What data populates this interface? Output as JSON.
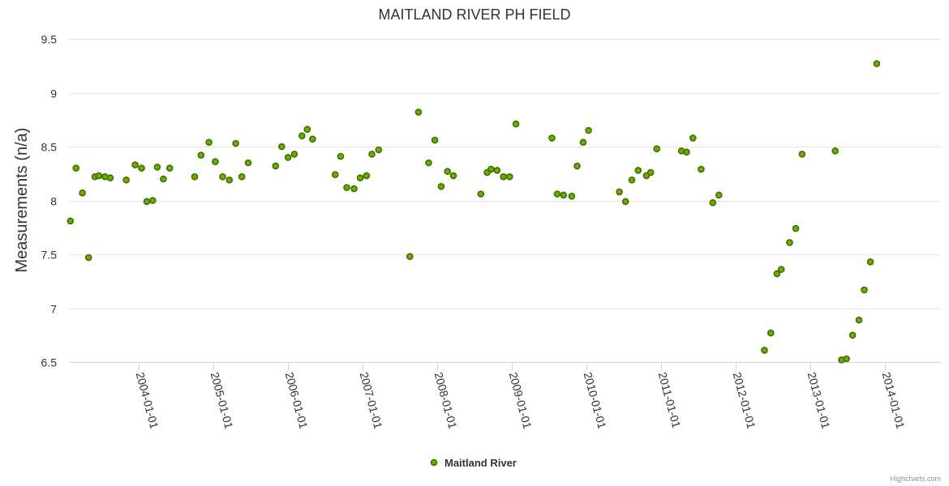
{
  "chart_data": {
    "type": "scatter",
    "title": "MAITLAND RIVER PH FIELD",
    "ylabel": "Measurements (n/a)",
    "xlabel": "",
    "ylim": [
      6.5,
      9.5
    ],
    "yticks": [
      "6.5",
      "7",
      "7.5",
      "8",
      "8.5",
      "9",
      "9.5"
    ],
    "xlim": [
      "2003-01-25",
      "2014-09-30"
    ],
    "xticks": [
      "2004-01-01",
      "2005-01-01",
      "2006-01-01",
      "2007-01-01",
      "2008-01-01",
      "2009-01-01",
      "2010-01-01",
      "2011-01-01",
      "2012-01-01",
      "2013-01-01",
      "2014-01-01"
    ],
    "legend": {
      "position": "bottom-center"
    },
    "credits": "Highcharts.com",
    "series": [
      {
        "name": "Maitland River",
        "color": "#6fae00",
        "points": [
          [
            "2003-02-01",
            7.81
          ],
          [
            "2003-03-01",
            8.3
          ],
          [
            "2003-04-01",
            8.07
          ],
          [
            "2003-05-01",
            7.47
          ],
          [
            "2003-06-01",
            8.22
          ],
          [
            "2003-06-20",
            8.23
          ],
          [
            "2003-07-20",
            8.22
          ],
          [
            "2003-08-15",
            8.21
          ],
          [
            "2003-11-01",
            8.19
          ],
          [
            "2003-12-15",
            8.33
          ],
          [
            "2004-01-15",
            8.3
          ],
          [
            "2004-02-10",
            7.99
          ],
          [
            "2004-03-10",
            8.0
          ],
          [
            "2004-04-01",
            8.31
          ],
          [
            "2004-05-01",
            8.2
          ],
          [
            "2004-06-01",
            8.3
          ],
          [
            "2004-10-01",
            8.22
          ],
          [
            "2004-11-01",
            8.42
          ],
          [
            "2004-12-10",
            8.54
          ],
          [
            "2005-01-10",
            8.36
          ],
          [
            "2005-02-15",
            8.22
          ],
          [
            "2005-03-20",
            8.19
          ],
          [
            "2005-04-20",
            8.53
          ],
          [
            "2005-05-20",
            8.22
          ],
          [
            "2005-06-20",
            8.35
          ],
          [
            "2005-11-01",
            8.32
          ],
          [
            "2005-12-01",
            8.5
          ],
          [
            "2006-01-01",
            8.4
          ],
          [
            "2006-02-01",
            8.43
          ],
          [
            "2006-03-10",
            8.6
          ],
          [
            "2006-04-05",
            8.66
          ],
          [
            "2006-05-01",
            8.57
          ],
          [
            "2006-08-20",
            8.24
          ],
          [
            "2006-09-15",
            8.41
          ],
          [
            "2006-10-15",
            8.12
          ],
          [
            "2006-11-20",
            8.11
          ],
          [
            "2006-12-20",
            8.21
          ],
          [
            "2007-01-20",
            8.23
          ],
          [
            "2007-02-15",
            8.43
          ],
          [
            "2007-03-20",
            8.47
          ],
          [
            "2007-08-20",
            7.48
          ],
          [
            "2007-10-01",
            8.82
          ],
          [
            "2007-11-20",
            8.35
          ],
          [
            "2007-12-20",
            8.56
          ],
          [
            "2008-01-20",
            8.13
          ],
          [
            "2008-02-20",
            8.27
          ],
          [
            "2008-03-20",
            8.23
          ],
          [
            "2008-08-01",
            8.06
          ],
          [
            "2008-09-01",
            8.26
          ],
          [
            "2008-09-20",
            8.29
          ],
          [
            "2008-10-20",
            8.28
          ],
          [
            "2008-11-20",
            8.22
          ],
          [
            "2008-12-20",
            8.22
          ],
          [
            "2009-01-20",
            8.71
          ],
          [
            "2009-07-15",
            8.58
          ],
          [
            "2009-08-10",
            8.06
          ],
          [
            "2009-09-10",
            8.05
          ],
          [
            "2009-10-20",
            8.04
          ],
          [
            "2009-11-15",
            8.32
          ],
          [
            "2009-12-15",
            8.54
          ],
          [
            "2010-01-10",
            8.65
          ],
          [
            "2010-06-10",
            8.08
          ],
          [
            "2010-07-10",
            7.99
          ],
          [
            "2010-08-10",
            8.19
          ],
          [
            "2010-09-10",
            8.28
          ],
          [
            "2010-10-20",
            8.23
          ],
          [
            "2010-11-10",
            8.26
          ],
          [
            "2010-12-10",
            8.48
          ],
          [
            "2011-04-10",
            8.46
          ],
          [
            "2011-05-05",
            8.45
          ],
          [
            "2011-06-05",
            8.58
          ],
          [
            "2011-07-15",
            8.29
          ],
          [
            "2011-09-10",
            7.98
          ],
          [
            "2011-10-10",
            8.05
          ],
          [
            "2012-05-20",
            6.61
          ],
          [
            "2012-06-20",
            6.77
          ],
          [
            "2012-07-20",
            7.32
          ],
          [
            "2012-08-10",
            7.36
          ],
          [
            "2012-09-20",
            7.61
          ],
          [
            "2012-10-20",
            7.74
          ],
          [
            "2012-11-20",
            8.43
          ],
          [
            "2013-05-01",
            8.46
          ],
          [
            "2013-06-01",
            6.52
          ],
          [
            "2013-06-25",
            6.53
          ],
          [
            "2013-07-25",
            6.75
          ],
          [
            "2013-08-25",
            6.89
          ],
          [
            "2013-09-20",
            7.17
          ],
          [
            "2013-10-20",
            7.43
          ],
          [
            "2013-11-20",
            9.27
          ]
        ]
      }
    ]
  }
}
